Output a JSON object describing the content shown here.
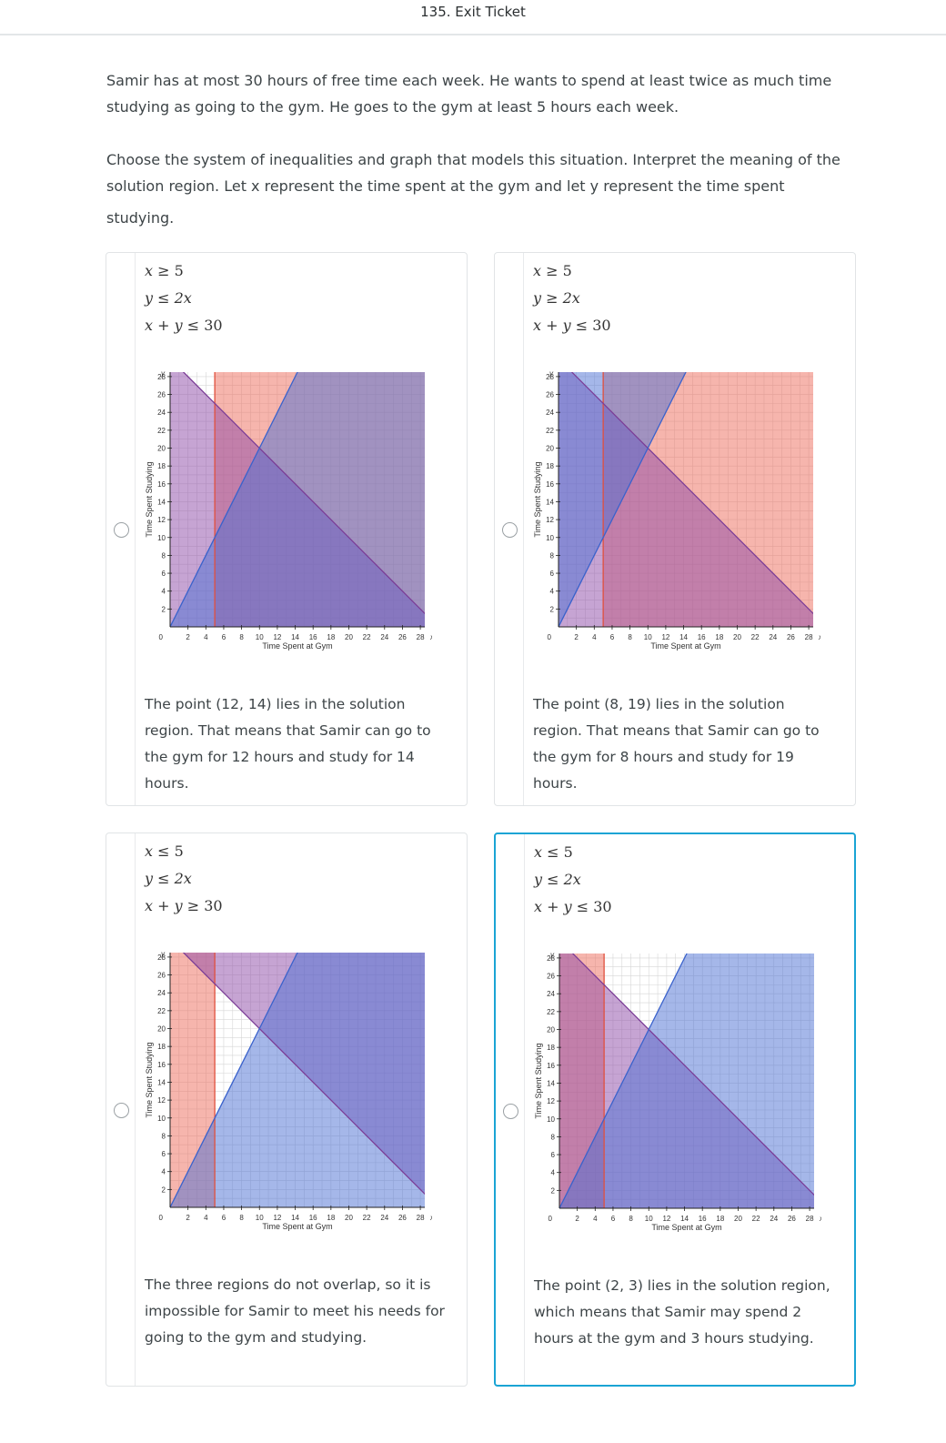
{
  "header": {
    "title": "135. Exit Ticket"
  },
  "question": {
    "paragraph1": "Samir has at most 30 hours of free time each week. He wants to spend at least twice as much time studying as going to the gym. He goes to the gym at least 5 hours each week.",
    "paragraph2_line1": "Choose the system of inequalities and graph that models this situation. Interpret the meaning of the",
    "paragraph2_line2": "solution region. Let x represent the time spent at the gym and let y represent the time spent",
    "paragraph2_line3": "studying."
  },
  "graph_common": {
    "xlabel": "Time Spent at Gym",
    "ylabel": "Time Spent Studying",
    "x_axis_letter": "x",
    "y_axis_letter": "y",
    "origin": "0",
    "x_ticks": [
      "2",
      "4",
      "6",
      "8",
      "10",
      "12",
      "14",
      "16",
      "18",
      "20",
      "22",
      "24",
      "26",
      "28"
    ],
    "y_ticks": [
      "2",
      "4",
      "6",
      "8",
      "10",
      "12",
      "14",
      "16",
      "18",
      "20",
      "22",
      "24",
      "26",
      "28"
    ],
    "colors": {
      "red": "#ee6c5c",
      "purple": "#8e4aa8",
      "blue": "#4b6fd4"
    }
  },
  "choices": [
    {
      "selected": false,
      "inequalities": [
        {
          "lhs": "x",
          "op": "≥",
          "rhs": "5"
        },
        {
          "lhs": "y",
          "op": "≤",
          "rhs": "2x"
        },
        {
          "lhs": "x + y",
          "op": "≤",
          "rhs": "30"
        }
      ],
      "regions": {
        "x5": "right",
        "y2x": "below",
        "sum30": "below"
      },
      "description": "The point (12, 14) lies in the solution region. That means that Samir can go to the gym for 12 hours and study for 14 hours."
    },
    {
      "selected": false,
      "inequalities": [
        {
          "lhs": "x",
          "op": "≥",
          "rhs": "5"
        },
        {
          "lhs": "y",
          "op": "≥",
          "rhs": "2x"
        },
        {
          "lhs": "x + y",
          "op": "≤",
          "rhs": "30"
        }
      ],
      "regions": {
        "x5": "right",
        "y2x": "above",
        "sum30": "below"
      },
      "description": "The point (8, 19) lies in the solution region. That means that Samir can go to the gym for 8 hours and study for 19 hours."
    },
    {
      "selected": false,
      "inequalities": [
        {
          "lhs": "x",
          "op": "≤",
          "rhs": "5"
        },
        {
          "lhs": "y",
          "op": "≤",
          "rhs": "2x"
        },
        {
          "lhs": "x + y",
          "op": "≥",
          "rhs": "30"
        }
      ],
      "regions": {
        "x5": "left",
        "y2x": "below",
        "sum30": "above"
      },
      "description": "The three regions do not overlap, so it is impossible for Samir to meet his needs for going to the gym and studying."
    },
    {
      "selected": true,
      "inequalities": [
        {
          "lhs": "x",
          "op": "≤",
          "rhs": "5"
        },
        {
          "lhs": "y",
          "op": "≤",
          "rhs": "2x"
        },
        {
          "lhs": "x + y",
          "op": "≤",
          "rhs": "30"
        }
      ],
      "regions": {
        "x5": "left",
        "y2x": "below",
        "sum30": "below"
      },
      "description": "The point (2, 3) lies in the solution region, which means that Samir may spend 2 hours at the gym and 3 hours studying."
    }
  ]
}
